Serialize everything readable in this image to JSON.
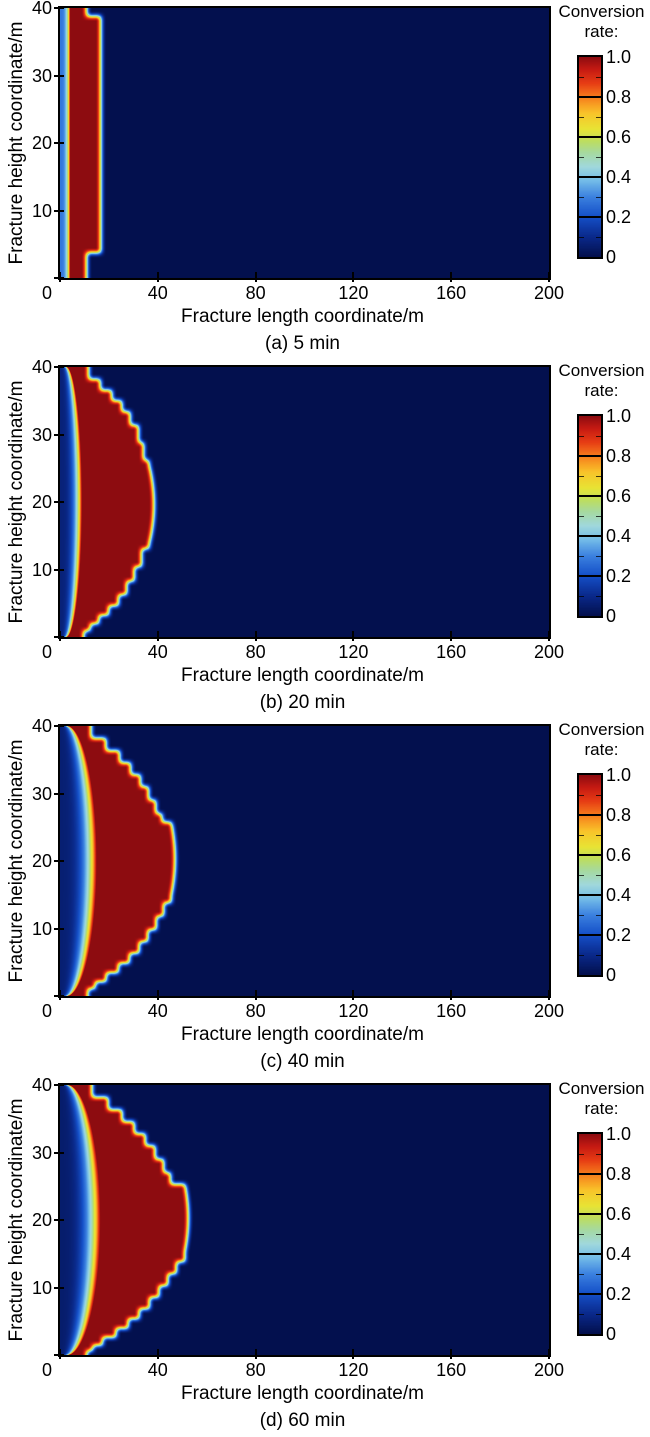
{
  "figure": {
    "background": "#ffffff",
    "text_color": "#000000",
    "frame_color": "#000000",
    "colorbar": {
      "title_line1": "Conversion",
      "title_line2": "rate:",
      "tick_labels": [
        "1.0",
        "0.8",
        "0.6",
        "0.4",
        "0.2",
        "0"
      ],
      "tick_values": [
        1.0,
        0.8,
        0.6,
        0.4,
        0.2,
        0
      ],
      "minor_tick_values": [
        0.9,
        0.7,
        0.5,
        0.3,
        0.1
      ],
      "stops": [
        [
          0.0,
          "#03104e"
        ],
        [
          0.1,
          "#0a2a8c"
        ],
        [
          0.2,
          "#1550c8"
        ],
        [
          0.3,
          "#3c82e0"
        ],
        [
          0.38,
          "#74bce8"
        ],
        [
          0.45,
          "#a0d8dc"
        ],
        [
          0.52,
          "#a6d9a0"
        ],
        [
          0.58,
          "#bede5e"
        ],
        [
          0.64,
          "#e8e434"
        ],
        [
          0.72,
          "#f9c32a"
        ],
        [
          0.8,
          "#f67d1c"
        ],
        [
          0.87,
          "#e73c14"
        ],
        [
          0.94,
          "#c51a12"
        ],
        [
          1.0,
          "#8d0c10"
        ]
      ]
    }
  },
  "chart_data": [
    {
      "type": "heatmap",
      "panel": "a",
      "caption": "(a) 5 min",
      "time_label": "5 min",
      "xlabel": "Fracture length coordinate/m",
      "ylabel": "Fracture height coordinate/m",
      "x_range": [
        0,
        200
      ],
      "y_range": [
        0,
        40
      ],
      "x_ticks": [
        0,
        40,
        80,
        120,
        160,
        200
      ],
      "y_ticks": [
        0,
        10,
        20,
        30,
        40
      ],
      "value_range": [
        0,
        1
      ],
      "colorbar_label": "Conversion rate:",
      "field": {
        "inlet": {
          "edge": 4.2,
          "mid": 4.2,
          "v0": 0.28
        },
        "front_steps": [
          [
            40,
            11
          ],
          [
            38.8,
            16.8
          ],
          [
            3.7,
            11
          ]
        ],
        "bulge": null
      }
    },
    {
      "type": "heatmap",
      "panel": "b",
      "caption": "(b) 20 min",
      "time_label": "20 min",
      "xlabel": "Fracture length coordinate/m",
      "ylabel": "Fracture height coordinate/m",
      "x_range": [
        0,
        200
      ],
      "y_range": [
        0,
        40
      ],
      "x_ticks": [
        0,
        40,
        80,
        120,
        160,
        200
      ],
      "y_ticks": [
        0,
        10,
        20,
        30,
        40
      ],
      "value_range": [
        0,
        1
      ],
      "colorbar_label": "Conversion rate:",
      "field": {
        "inlet": {
          "edge": 2.6,
          "mid": 9.0,
          "v0": 0.07
        },
        "front_steps": [
          [
            40,
            11.8
          ],
          [
            38.2,
            16.6
          ],
          [
            36.6,
            21.3
          ],
          [
            35.0,
            25.4
          ],
          [
            33.4,
            28.8
          ],
          [
            31.4,
            32.2
          ],
          [
            28.8,
            34.3
          ],
          [
            26.2,
            36.5
          ],
          [
            13.0,
            33.5
          ],
          [
            10.4,
            30.5
          ],
          [
            8.2,
            27.4
          ],
          [
            6.2,
            24.0
          ],
          [
            4.6,
            20.0
          ],
          [
            3.2,
            16.0
          ],
          [
            1.9,
            12.5
          ],
          [
            0.9,
            9.8
          ]
        ],
        "bulge": {
          "yc": 19.6,
          "hw": 6.0,
          "peak": 38.6,
          "base": 36.5
        }
      }
    },
    {
      "type": "heatmap",
      "panel": "c",
      "caption": "(c) 40 min",
      "time_label": "40 min",
      "xlabel": "Fracture length coordinate/m",
      "ylabel": "Fracture height coordinate/m",
      "x_range": [
        0,
        200
      ],
      "y_range": [
        0,
        40
      ],
      "x_ticks": [
        0,
        40,
        80,
        120,
        160,
        200
      ],
      "y_ticks": [
        0,
        10,
        20,
        30,
        40
      ],
      "value_range": [
        0,
        1
      ],
      "colorbar_label": "Conversion rate:",
      "field": {
        "inlet": {
          "edge": 2.8,
          "mid": 15.0,
          "v0": 0.06
        },
        "front_steps": [
          [
            40,
            12.8
          ],
          [
            38.2,
            18.9
          ],
          [
            36.4,
            24.5
          ],
          [
            34.6,
            29.0
          ],
          [
            32.8,
            33.0
          ],
          [
            31.0,
            36.3
          ],
          [
            29.0,
            39.3
          ],
          [
            27.0,
            41.8
          ],
          [
            25.3,
            44.0
          ],
          [
            23.8,
            45.6
          ],
          [
            13.8,
            42.5
          ],
          [
            11.8,
            39.5
          ],
          [
            9.8,
            36.0
          ],
          [
            8.0,
            32.5
          ],
          [
            6.3,
            28.5
          ],
          [
            4.8,
            24.0
          ],
          [
            3.4,
            19.0
          ],
          [
            2.1,
            14.5
          ],
          [
            1.0,
            11.5
          ]
        ],
        "bulge": {
          "yc": 20.3,
          "hw": 5.5,
          "peak": 47.2,
          "base": 45.6
        }
      }
    },
    {
      "type": "heatmap",
      "panel": "d",
      "caption": "(d) 60 min",
      "time_label": "60 min",
      "xlabel": "Fracture length coordinate/m",
      "ylabel": "Fracture height coordinate/m",
      "x_range": [
        0,
        200
      ],
      "y_range": [
        0,
        40
      ],
      "x_ticks": [
        0,
        40,
        80,
        120,
        160,
        200
      ],
      "y_ticks": [
        0,
        10,
        20,
        30,
        40
      ],
      "value_range": [
        0,
        1
      ],
      "colorbar_label": "Conversion rate:",
      "field": {
        "inlet": {
          "edge": 3.0,
          "mid": 16.5,
          "v0": 0.05
        },
        "front_steps": [
          [
            40,
            13.2
          ],
          [
            38.2,
            19.8
          ],
          [
            36.4,
            25.5
          ],
          [
            34.6,
            30.5
          ],
          [
            32.8,
            35.0
          ],
          [
            31.0,
            39.0
          ],
          [
            29.0,
            42.5
          ],
          [
            27.0,
            45.3
          ],
          [
            25.3,
            47.7
          ],
          [
            23.8,
            49.7
          ],
          [
            22.4,
            51.2
          ],
          [
            13.8,
            47.7
          ],
          [
            12.0,
            44.2
          ],
          [
            10.2,
            40.6
          ],
          [
            8.5,
            36.7
          ],
          [
            6.8,
            32.5
          ],
          [
            5.3,
            28.0
          ],
          [
            3.9,
            23.0
          ],
          [
            2.6,
            17.5
          ],
          [
            1.4,
            13.5
          ],
          [
            0.6,
            11.0
          ]
        ],
        "bulge": {
          "yc": 20.3,
          "hw": 5.0,
          "peak": 52.6,
          "base": 51.2
        }
      }
    }
  ]
}
